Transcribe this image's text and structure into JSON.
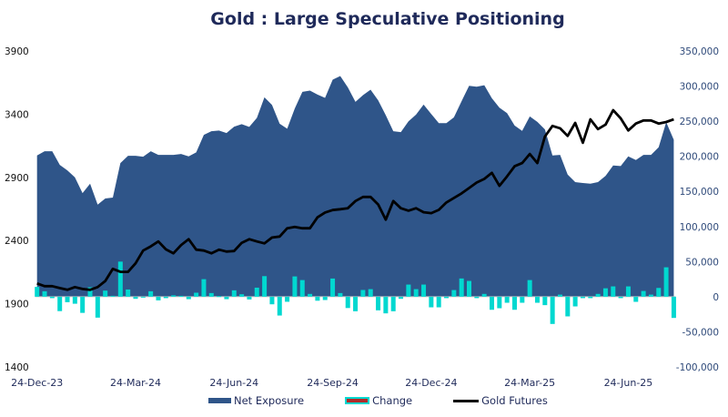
{
  "chart_data": {
    "type": "area+bar+line",
    "title": "Gold : Large Speculative Positioning",
    "x_start": "24-Dec-23",
    "x_frequency": "weekly",
    "x_tick_labels": [
      "24-Dec-23",
      "24-Mar-24",
      "24-Jun-24",
      "24-Sep-24",
      "24-Dec-24",
      "24-Mar-25",
      "24-Jun-25"
    ],
    "y_left": {
      "ylim": [
        1400,
        3900
      ],
      "ticks": [
        "3900",
        "3400",
        "2900",
        "2400",
        "1900",
        "1400"
      ]
    },
    "y_right": {
      "ylim": [
        -100000,
        350000
      ],
      "ticks": [
        "350,000",
        "300,000",
        "250,000",
        "200,000",
        "150,000",
        "100,000",
        "50,000",
        "0",
        "-50,000",
        "-100,000"
      ]
    },
    "grid": false,
    "legend_position": "bottom",
    "series": [
      {
        "name": "Net Exposure",
        "type": "area",
        "axis": "right",
        "color": "#2f5589",
        "values": [
          201100,
          207200,
          207200,
          187800,
          180000,
          170000,
          147600,
          161000,
          131200,
          139900,
          141200,
          190400,
          200700,
          200700,
          199400,
          207200,
          202000,
          202000,
          202000,
          203300,
          199800,
          205500,
          230500,
          235700,
          236600,
          233100,
          242200,
          245700,
          241800,
          254700,
          284000,
          273200,
          246400,
          239200,
          268100,
          291800,
          293600,
          287900,
          283200,
          309100,
          314300,
          298200,
          277500,
          287100,
          294900,
          279700,
          258600,
          235700,
          234400,
          249900,
          259400,
          273600,
          260300,
          247300,
          247300,
          255500,
          278400,
          300400,
          299100,
          301300,
          282700,
          269400,
          261600,
          243800,
          236100,
          256800,
          249000,
          238300,
          201100,
          202000,
          173900,
          163200,
          161900,
          161000,
          163200,
          172200,
          186900,
          186100,
          199800,
          194600,
          202000,
          202000,
          212800,
          248600,
          223600
        ]
      },
      {
        "name": "Change",
        "type": "bar",
        "axis": "right",
        "color": "#00d8d0",
        "legend_inner_color": "#b22a2a",
        "values": [
          14000,
          7800,
          -2000,
          -20500,
          -7800,
          -10000,
          -23000,
          13400,
          -29800,
          8700,
          1300,
          50000,
          10300,
          -3000,
          -1300,
          7800,
          -5200,
          -2000,
          2000,
          1300,
          -3500,
          5700,
          25000,
          5200,
          900,
          -3500,
          9100,
          3500,
          -3900,
          12900,
          29300,
          -10800,
          -26800,
          -7200,
          28900,
          23700,
          4000,
          -5700,
          -4700,
          25900,
          5200,
          -16100,
          -20700,
          9600,
          10800,
          -19400,
          -23700,
          -20700,
          -3000,
          17300,
          10800,
          17300,
          -15100,
          -15100,
          -2000,
          9500,
          26000,
          22500,
          -2000,
          4000,
          -18600,
          -16400,
          -8600,
          -18600,
          -8600,
          23700,
          -8600,
          -12000,
          -38800,
          3000,
          -28000,
          -13800,
          -2000,
          -2000,
          4000,
          12000,
          14700,
          -2000,
          14700,
          -7300,
          8200,
          3000,
          12500,
          41900,
          -30200
        ]
      },
      {
        "name": "Gold Futures",
        "type": "line",
        "axis": "left",
        "color": "#000000",
        "values": [
          2061,
          2039,
          2039,
          2024,
          2010,
          2032,
          2017,
          2010,
          2032,
          2080,
          2176,
          2152,
          2152,
          2220,
          2321,
          2354,
          2393,
          2330,
          2299,
          2364,
          2411,
          2328,
          2321,
          2299,
          2328,
          2313,
          2317,
          2382,
          2411,
          2393,
          2378,
          2424,
          2432,
          2497,
          2508,
          2497,
          2497,
          2584,
          2622,
          2641,
          2648,
          2656,
          2713,
          2745,
          2745,
          2685,
          2565,
          2713,
          2656,
          2636,
          2656,
          2624,
          2617,
          2643,
          2701,
          2737,
          2773,
          2816,
          2859,
          2888,
          2936,
          2833,
          2908,
          2988,
          3013,
          3085,
          3013,
          3223,
          3307,
          3288,
          3228,
          3331,
          3174,
          3359,
          3282,
          3318,
          3432,
          3367,
          3271,
          3326,
          3350,
          3350,
          3326,
          3338,
          3359
        ]
      }
    ]
  }
}
